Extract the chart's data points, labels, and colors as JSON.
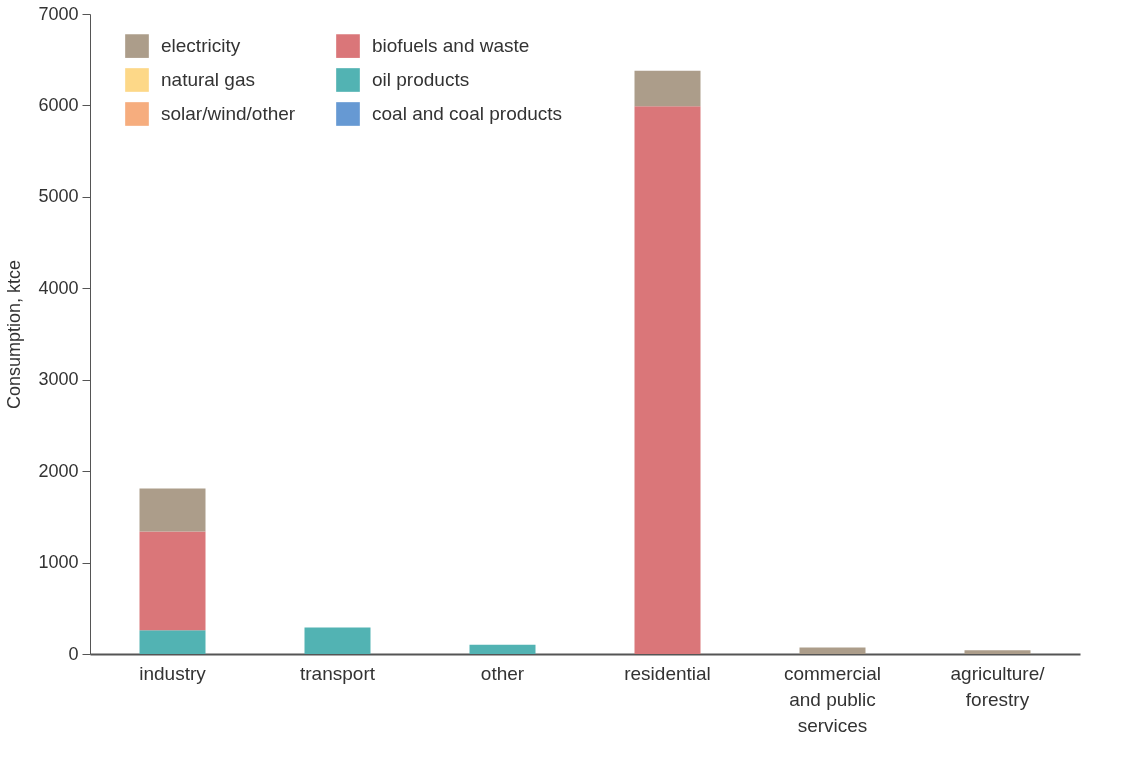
{
  "chart_data": {
    "type": "bar",
    "stacked": true,
    "ylabel": "Consumption, ktce",
    "categories": [
      "industry",
      "transport",
      "other",
      "residential",
      "commercial and public services",
      "agriculture/forestry"
    ],
    "series": [
      {
        "name": "coal and coal products",
        "color": "#6699d3",
        "values": [
          null,
          null,
          null,
          null,
          null,
          null
        ]
      },
      {
        "name": "oil products",
        "color": "#52b3b3",
        "values": [
          260,
          290,
          100,
          null,
          null,
          null
        ]
      },
      {
        "name": "biofuels and waste",
        "color": "#da7679",
        "values": [
          1080,
          null,
          null,
          5990,
          null,
          null
        ]
      },
      {
        "name": "solar/wind/other",
        "color": "#f6ad7e",
        "values": [
          null,
          null,
          null,
          null,
          null,
          null
        ]
      },
      {
        "name": "natural gas",
        "color": "#fdd888",
        "values": [
          null,
          null,
          null,
          null,
          null,
          null
        ]
      },
      {
        "name": "electricity",
        "color": "#ac9d8a",
        "values": [
          470,
          null,
          null,
          390,
          70,
          40
        ]
      }
    ],
    "ylim": [
      0,
      7000
    ],
    "yticks": [
      0,
      1000,
      2000,
      3000,
      4000,
      5000,
      6000,
      7000
    ],
    "grid": false,
    "legend": "top left"
  }
}
